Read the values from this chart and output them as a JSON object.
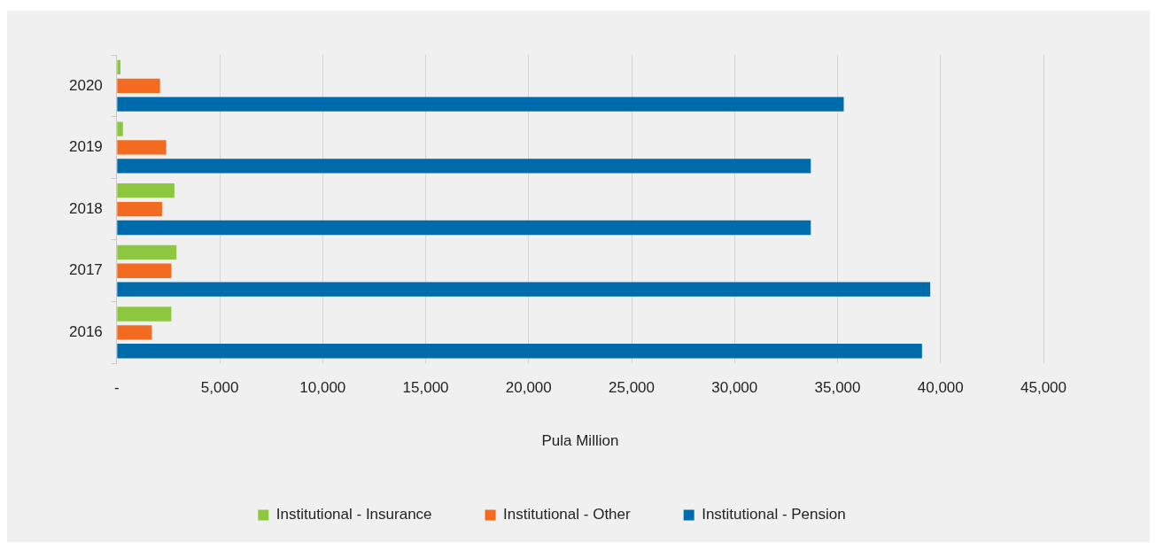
{
  "chart_data": {
    "type": "bar",
    "orientation": "horizontal",
    "xlabel": "Pula Million",
    "categories": [
      "2020",
      "2019",
      "2018",
      "2017",
      "2016"
    ],
    "series": [
      {
        "name": "Institutional - Insurance",
        "color": "#8dc63f",
        "values": [
          180,
          300,
          2800,
          2900,
          2650
        ]
      },
      {
        "name": "Institutional - Other",
        "color": "#f26b21",
        "values": [
          2100,
          2400,
          2200,
          2650,
          1700
        ]
      },
      {
        "name": "Institutional - Pension",
        "color": "#006bab",
        "values": [
          35300,
          33700,
          33700,
          39500,
          39100
        ]
      }
    ],
    "xlim": [
      0,
      45000
    ],
    "xticks": [
      {
        "value": 0,
        "label": "-"
      },
      {
        "value": 5000,
        "label": "5,000"
      },
      {
        "value": 10000,
        "label": "10,000"
      },
      {
        "value": 15000,
        "label": "15,000"
      },
      {
        "value": 20000,
        "label": "20,000"
      },
      {
        "value": 25000,
        "label": "25,000"
      },
      {
        "value": 30000,
        "label": "30,000"
      },
      {
        "value": 35000,
        "label": "35,000"
      },
      {
        "value": 40000,
        "label": "40,000"
      },
      {
        "value": 45000,
        "label": "45,000"
      }
    ],
    "grid": "x",
    "legend": "bottom"
  }
}
